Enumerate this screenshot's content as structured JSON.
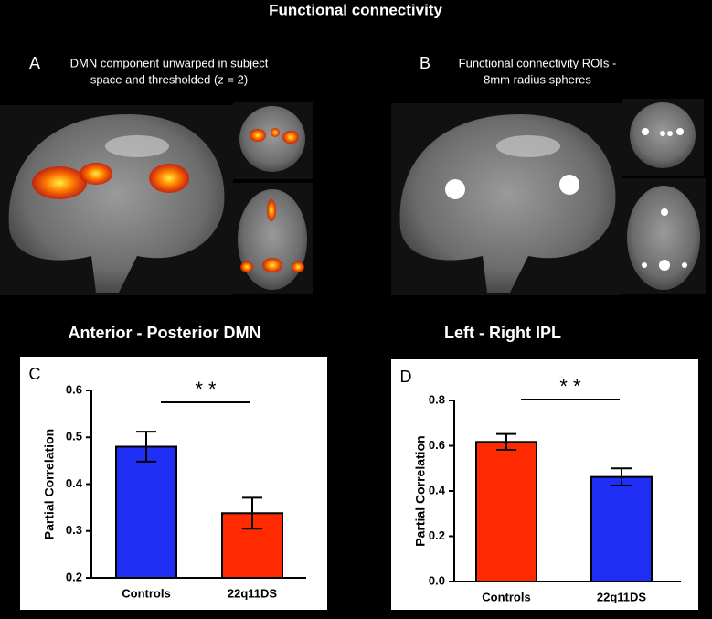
{
  "figure": {
    "title": "Functional connectivity",
    "panels": [
      {
        "label": "A",
        "caption": [
          "DMN component unwarped in subject",
          "space and thresholded (z = 2)"
        ]
      },
      {
        "label": "B",
        "caption": [
          "Functional connectivity ROIs -",
          "8mm radius spheres"
        ]
      }
    ]
  },
  "chart_data": [
    {
      "type": "bar",
      "panel": "C",
      "title": "Anterior - Posterior DMN",
      "ylabel": "Partial Correlation",
      "categories": [
        "Controls",
        "22q11DS"
      ],
      "values": [
        0.48,
        0.338
      ],
      "errors": [
        0.032,
        0.033
      ],
      "colors": [
        "#1f2ff5",
        "#ff2a00"
      ],
      "ylim": [
        0.2,
        0.6
      ],
      "yticks": [
        0.2,
        0.3,
        0.4,
        0.5,
        0.6
      ],
      "annotation": "* *"
    },
    {
      "type": "bar",
      "panel": "D",
      "title": "Left - Right IPL",
      "ylabel": "Partial Correlation",
      "categories": [
        "Controls",
        "22q11DS"
      ],
      "values": [
        0.617,
        0.462
      ],
      "errors": [
        0.035,
        0.038
      ],
      "colors": [
        "#ff2a00",
        "#1f2ff5"
      ],
      "ylim": [
        0,
        0.8
      ],
      "yticks": [
        {
          "value": 0,
          "label": "0.0"
        },
        0.2,
        0.4,
        0.6,
        0.8
      ],
      "annotation": "* *"
    }
  ]
}
